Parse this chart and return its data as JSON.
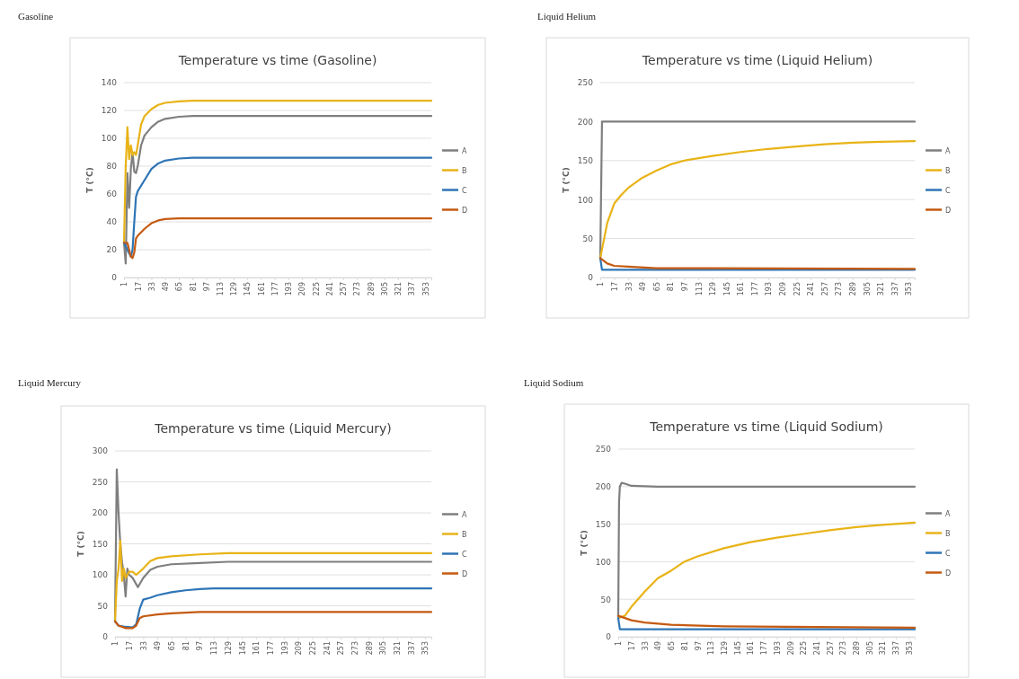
{
  "chart_data": [
    {
      "type": "line",
      "subtitle": "Gasoline",
      "title": "Temperature vs time (Gasoline)",
      "ylabel": "T (°C)",
      "xlim": [
        1,
        360
      ],
      "xticks": [
        1,
        17,
        33,
        49,
        65,
        81,
        97,
        113,
        129,
        145,
        161,
        177,
        193,
        209,
        225,
        241,
        257,
        273,
        289,
        305,
        321,
        337,
        353
      ],
      "ylim": [
        0,
        140
      ],
      "yticks": [
        0,
        20,
        40,
        60,
        80,
        100,
        120,
        140
      ],
      "grid": "y",
      "legend": "right",
      "line_style": "solid",
      "series": [
        {
          "name": "A",
          "color": "#7f7f7f",
          "x": [
            1,
            3,
            5,
            7,
            9,
            11,
            13,
            15,
            17,
            21,
            25,
            33,
            41,
            49,
            65,
            81,
            120,
            200,
            360
          ],
          "values": [
            25,
            10,
            75,
            50,
            78,
            90,
            76,
            75,
            80,
            95,
            102,
            108,
            112,
            114,
            115.5,
            116,
            116,
            116,
            116
          ]
        },
        {
          "name": "B",
          "color": "#e8b317",
          "x": [
            1,
            3,
            5,
            7,
            9,
            11,
            13,
            15,
            17,
            21,
            25,
            33,
            41,
            49,
            65,
            81,
            360
          ],
          "values": [
            25,
            80,
            108,
            85,
            95,
            88,
            90,
            88,
            95,
            110,
            116,
            121,
            124,
            125.5,
            126.5,
            127,
            127
          ]
        },
        {
          "name": "C",
          "color": "#2e75b6",
          "x": [
            1,
            5,
            9,
            11,
            13,
            15,
            17,
            25,
            33,
            41,
            49,
            65,
            81,
            360
          ],
          "values": [
            25,
            20,
            15,
            20,
            40,
            58,
            62,
            70,
            78,
            82,
            84,
            85.5,
            86,
            86
          ]
        },
        {
          "name": "D",
          "color": "#c55a11",
          "x": [
            1,
            5,
            9,
            11,
            13,
            15,
            17,
            25,
            33,
            41,
            49,
            65,
            360
          ],
          "values": [
            25,
            25,
            15,
            14,
            18,
            28,
            30,
            35,
            39,
            41,
            42,
            42.5,
            42.5
          ]
        }
      ]
    },
    {
      "type": "line",
      "subtitle": "Liquid Helium",
      "title": "Temperature vs time (Liquid Helium)",
      "ylabel": "T (°C)",
      "xlim": [
        1,
        360
      ],
      "xticks": [
        1,
        17,
        33,
        49,
        65,
        81,
        97,
        113,
        129,
        145,
        161,
        177,
        193,
        209,
        225,
        241,
        257,
        273,
        289,
        305,
        321,
        337,
        353
      ],
      "ylim": [
        0,
        250
      ],
      "yticks": [
        0,
        50,
        100,
        150,
        200,
        250
      ],
      "grid": "y",
      "legend": "right",
      "line_style": "solid",
      "series": [
        {
          "name": "A",
          "color": "#7f7f7f",
          "x": [
            1,
            3,
            360
          ],
          "values": [
            25,
            200,
            200
          ]
        },
        {
          "name": "B",
          "color": "#e8b317",
          "x": [
            1,
            9,
            17,
            25,
            33,
            49,
            65,
            81,
            97,
            129,
            161,
            193,
            225,
            257,
            289,
            321,
            360
          ],
          "values": [
            25,
            70,
            95,
            106,
            115,
            128,
            137,
            145,
            150,
            156,
            161,
            165,
            168,
            171,
            173,
            174,
            175
          ]
        },
        {
          "name": "C",
          "color": "#2e75b6",
          "x": [
            1,
            3,
            360
          ],
          "values": [
            25,
            10,
            10
          ]
        },
        {
          "name": "D",
          "color": "#c55a11",
          "x": [
            1,
            9,
            17,
            33,
            65,
            129,
            360
          ],
          "values": [
            25,
            18,
            15,
            14,
            12,
            12,
            11
          ]
        }
      ]
    },
    {
      "type": "line",
      "subtitle": "Liquid Mercury",
      "title": "Temperature vs time (Liquid Mercury)",
      "ylabel": "T (°C)",
      "xlim": [
        1,
        360
      ],
      "xticks": [
        1,
        17,
        33,
        49,
        65,
        81,
        97,
        113,
        129,
        145,
        161,
        177,
        193,
        209,
        225,
        241,
        257,
        273,
        289,
        305,
        321,
        337,
        353
      ],
      "ylim": [
        0,
        300
      ],
      "yticks": [
        0,
        50,
        100,
        150,
        200,
        250,
        300
      ],
      "grid": "y",
      "legend": "right",
      "line_style": "solid",
      "series": [
        {
          "name": "A",
          "color": "#7f7f7f",
          "x": [
            1,
            3,
            5,
            7,
            9,
            11,
            13,
            15,
            17,
            21,
            25,
            27,
            33,
            41,
            49,
            65,
            97,
            129,
            360
          ],
          "values": [
            25,
            270,
            200,
            150,
            120,
            100,
            65,
            110,
            100,
            95,
            85,
            80,
            95,
            108,
            113,
            117,
            119,
            121,
            121
          ]
        },
        {
          "name": "B",
          "color": "#e8b317",
          "x": [
            1,
            3,
            5,
            7,
            9,
            11,
            13,
            15,
            17,
            21,
            25,
            33,
            41,
            49,
            65,
            97,
            129,
            360
          ],
          "values": [
            25,
            90,
            110,
            155,
            90,
            110,
            95,
            100,
            105,
            105,
            100,
            110,
            122,
            127,
            130,
            133,
            135,
            135
          ]
        },
        {
          "name": "C",
          "color": "#2e75b6",
          "x": [
            1,
            5,
            13,
            21,
            25,
            29,
            33,
            41,
            49,
            65,
            81,
            97,
            113,
            360
          ],
          "values": [
            25,
            18,
            16,
            15,
            20,
            45,
            60,
            63,
            67,
            72,
            75,
            77,
            78,
            78
          ]
        },
        {
          "name": "D",
          "color": "#c55a11",
          "x": [
            1,
            5,
            13,
            21,
            25,
            29,
            33,
            49,
            65,
            97,
            360
          ],
          "values": [
            25,
            18,
            14,
            14,
            18,
            30,
            33,
            36,
            38,
            40,
            40
          ]
        }
      ]
    },
    {
      "type": "line",
      "subtitle": "Liquid Sodium",
      "title": "Temperature vs time (Liquid Sodium)",
      "ylabel": "T (°C)",
      "xlim": [
        1,
        360
      ],
      "xticks": [
        1,
        17,
        33,
        49,
        65,
        81,
        97,
        113,
        129,
        145,
        161,
        177,
        193,
        209,
        225,
        241,
        257,
        273,
        289,
        305,
        321,
        337,
        353
      ],
      "ylim": [
        0,
        250
      ],
      "yticks": [
        0,
        50,
        100,
        150,
        200,
        250
      ],
      "grid": "y",
      "legend": "right",
      "line_style": "solid",
      "series": [
        {
          "name": "A",
          "color": "#7f7f7f",
          "x": [
            1,
            2,
            3,
            5,
            9,
            17,
            49,
            360
          ],
          "values": [
            25,
            180,
            200,
            205,
            204,
            201,
            200,
            200
          ]
        },
        {
          "name": "B",
          "color": "#e8b317",
          "x": [
            1,
            9,
            17,
            33,
            49,
            65,
            81,
            97,
            129,
            161,
            193,
            225,
            257,
            289,
            321,
            360
          ],
          "values": [
            25,
            28,
            40,
            60,
            78,
            88,
            100,
            107,
            118,
            126,
            132,
            137,
            142,
            146,
            149,
            152
          ]
        },
        {
          "name": "C",
          "color": "#2e75b6",
          "x": [
            1,
            3,
            360
          ],
          "values": [
            25,
            10,
            10
          ]
        },
        {
          "name": "D",
          "color": "#c55a11",
          "x": [
            1,
            17,
            33,
            65,
            129,
            360
          ],
          "values": [
            28,
            22,
            19,
            16,
            14,
            12
          ]
        }
      ]
    }
  ]
}
